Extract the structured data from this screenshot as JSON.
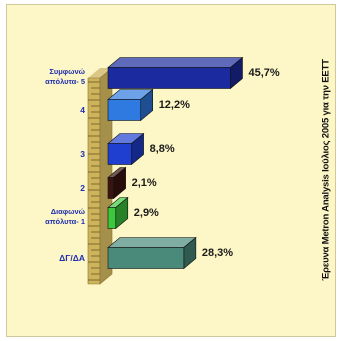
{
  "chart_data": {
    "type": "bar",
    "orientation": "horizontal",
    "style": "3d",
    "categories": [
      {
        "label": "Συμφωνώ απόλυτα- 5",
        "lines": [
          "Συμφωνώ",
          "απόλυτα- 5"
        ]
      },
      {
        "label": "4",
        "lines": [
          "4"
        ]
      },
      {
        "label": "3",
        "lines": [
          "3"
        ]
      },
      {
        "label": "2",
        "lines": [
          "2"
        ]
      },
      {
        "label": "Διαφωνώ απόλυτα- 1",
        "lines": [
          "Διαφωνώ",
          "απόλυτα- 1"
        ]
      },
      {
        "label": "ΔΓ/ΔΑ",
        "lines": [
          "ΔΓ/ΔΑ"
        ]
      }
    ],
    "values": [
      45.7,
      12.2,
      8.8,
      2.1,
      2.9,
      28.3
    ],
    "value_labels": [
      "45,7%",
      "12,2%",
      "8,8%",
      "2,1%",
      "2,9%",
      "28,3%"
    ],
    "colors": [
      "#1b2a9e",
      "#2f7ae0",
      "#1f3fd0",
      "#3a1410",
      "#3cc83c",
      "#4a8a7a"
    ],
    "xlim": [
      0,
      50
    ],
    "grid": false,
    "legend": "none",
    "source_note": "Έρευνα Metron Analysis Ιούλιος 2005 για την ΕΕΤΤ"
  },
  "colors": {
    "background": "#fdf6c6",
    "ruler": "#cdb45c",
    "category_text": "#1f2fb0"
  }
}
